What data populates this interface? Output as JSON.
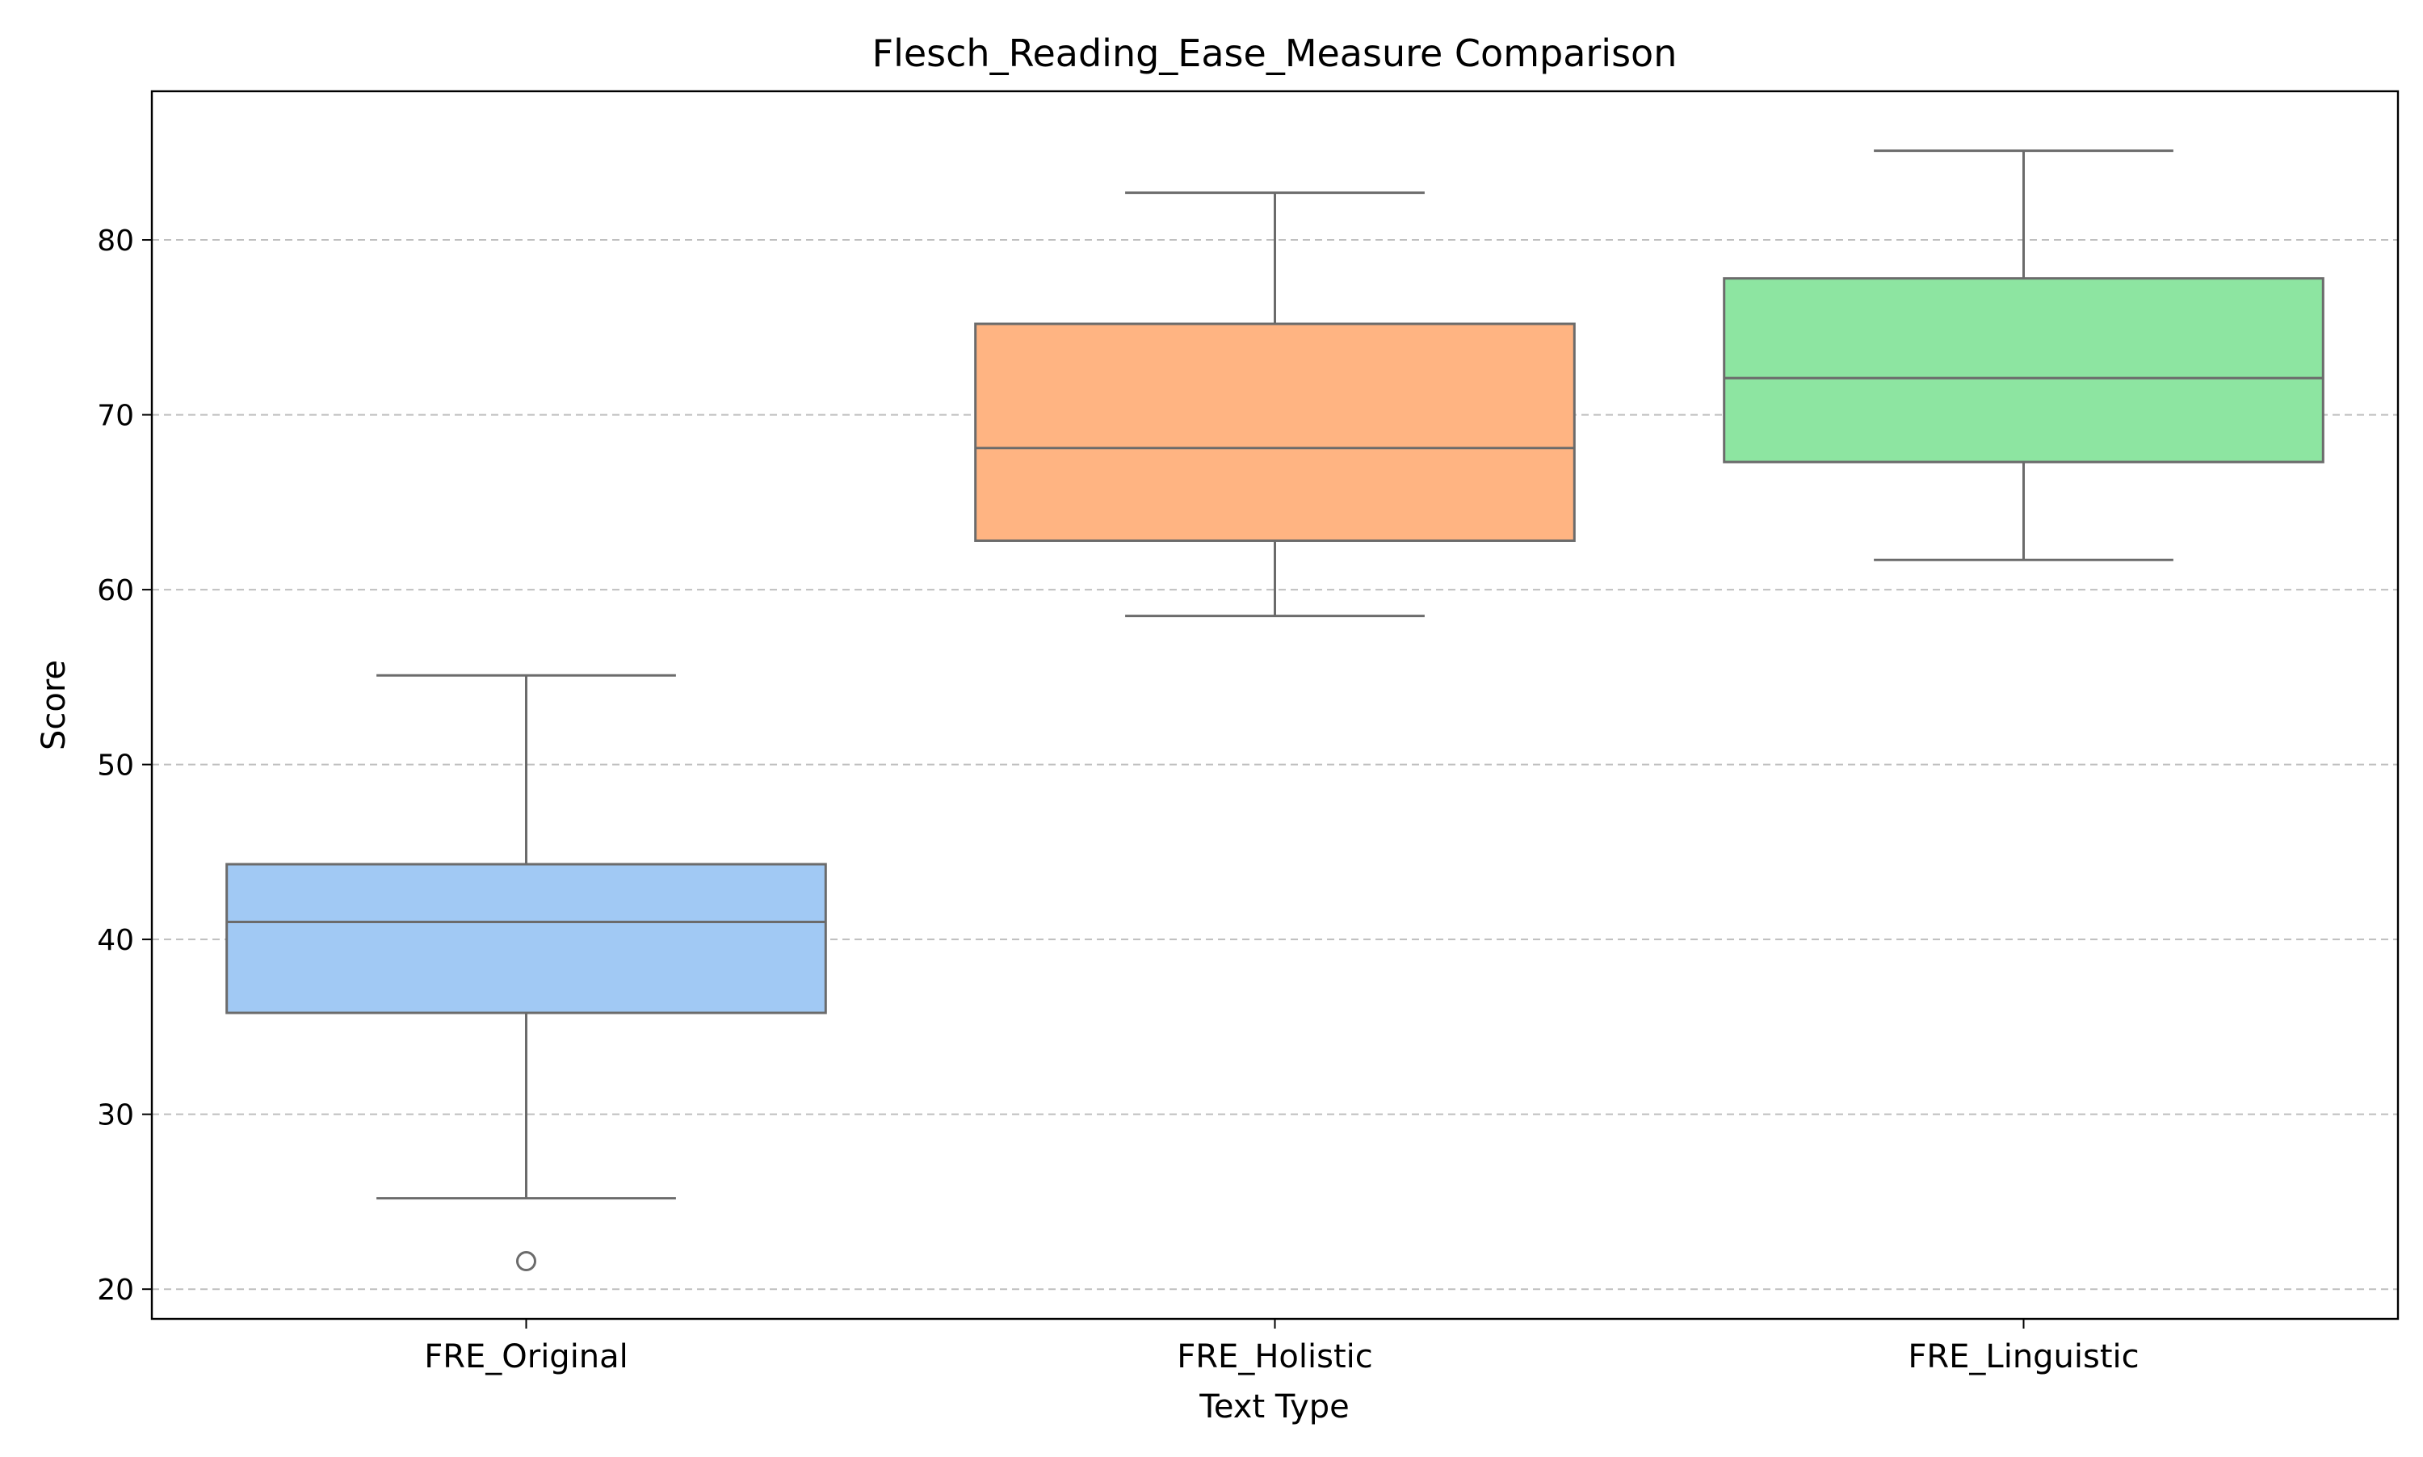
{
  "chart_data": {
    "type": "box",
    "title": "Flesch_Reading_Ease_Measure Comparison",
    "xlabel": "Text Type",
    "ylabel": "Score",
    "ylim": [
      18.3,
      88.5
    ],
    "yticks": [
      20,
      30,
      40,
      50,
      60,
      70,
      80
    ],
    "grid": {
      "y": true,
      "x": false,
      "style": "dashed"
    },
    "categories": [
      "FRE_Original",
      "FRE_Holistic",
      "FRE_Linguistic"
    ],
    "boxes": [
      {
        "category": "FRE_Original",
        "color": "#a1c9f4",
        "whisker_low": 25.2,
        "q1": 35.8,
        "median": 41.0,
        "q3": 44.3,
        "whisker_high": 55.1,
        "outliers": [
          21.6
        ]
      },
      {
        "category": "FRE_Holistic",
        "color": "#ffb482",
        "whisker_low": 58.5,
        "q1": 62.8,
        "median": 68.1,
        "q3": 75.2,
        "whisker_high": 82.7,
        "outliers": []
      },
      {
        "category": "FRE_Linguistic",
        "color": "#8de5a1",
        "whisker_low": 61.7,
        "q1": 67.3,
        "median": 72.1,
        "q3": 77.8,
        "whisker_high": 85.1,
        "outliers": []
      }
    ],
    "line_color": "#6b6b6b"
  }
}
